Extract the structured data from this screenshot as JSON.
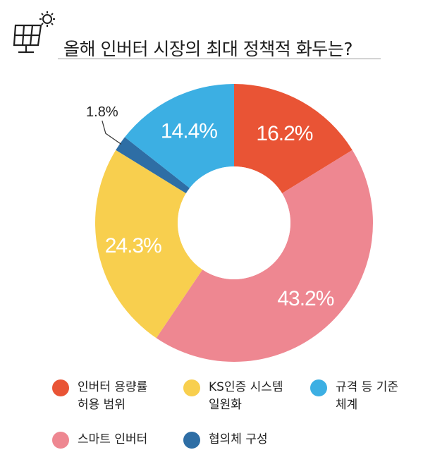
{
  "title": "올해 인버터 시장의 최대 정책적 화두는?",
  "chart_data": {
    "type": "pie",
    "donut": true,
    "title": "올해 인버터 시장의 최대 정책적 화두는?",
    "categories": [
      "인버터 용량률 허용 범위",
      "스마트 인버터",
      "KS인증 시스템 일원화",
      "협의체 구성",
      "규격 등 기준 체계"
    ],
    "values": [
      16.2,
      43.2,
      24.3,
      1.8,
      14.4
    ],
    "labels": [
      "16.2%",
      "43.2%",
      "24.3%",
      "1.8%",
      "14.4%"
    ],
    "colors": [
      "#E95435",
      "#EE8791",
      "#F8CF4E",
      "#2E6EA5",
      "#3CAFE3"
    ],
    "legend_position": "bottom"
  },
  "legend": [
    {
      "text": "인버터 용량률\n허용 범위",
      "color": "#E95435"
    },
    {
      "text": "KS인증 시스템\n일원화",
      "color": "#F8CF4E"
    },
    {
      "text": "규격 등 기준\n체계",
      "color": "#3CAFE3"
    },
    {
      "text": "스마트 인버터",
      "color": "#EE8791"
    },
    {
      "text": "협의체 구성",
      "color": "#2E6EA5"
    }
  ],
  "icons": {
    "header": "solar-panel-icon"
  }
}
